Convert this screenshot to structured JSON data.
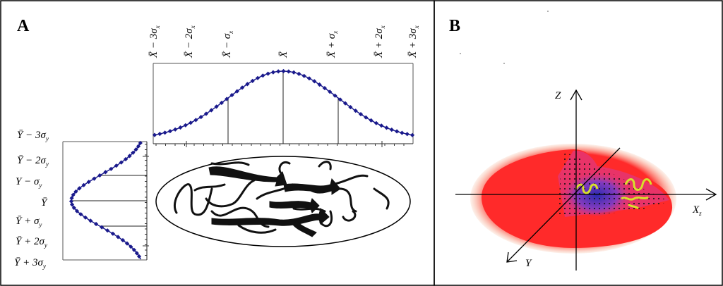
{
  "panels": {
    "a": {
      "letter": "A",
      "x_ticks": [
        "X̄ − 3σ",
        "X̄ − 2σ",
        "X̄ − σ",
        "X̄",
        "X̄ + σ",
        "X̄ + 2σ",
        "X̄ + 3σ"
      ],
      "x_ticks_sub": "x",
      "y_ticks": [
        "Ȳ − 3σ",
        "Ȳ − 2σ",
        "Y − σ",
        "Ȳ",
        "Ȳ  + σ",
        "Ȳ + 2σ",
        "Ȳ + 3σ"
      ],
      "y_ticks_sub": "y"
    },
    "b": {
      "letter": "B",
      "axis_z": "Z",
      "axis_x": "X",
      "axis_x_sub": "z",
      "axis_y": "Y"
    }
  },
  "colors": {
    "curve": "#1a1a8c",
    "ellipsoid": "#ff2a2a",
    "ellipsoid_halo": "#f3a27a",
    "density": "#6a3cc8",
    "helix": "#d8e02a"
  }
}
